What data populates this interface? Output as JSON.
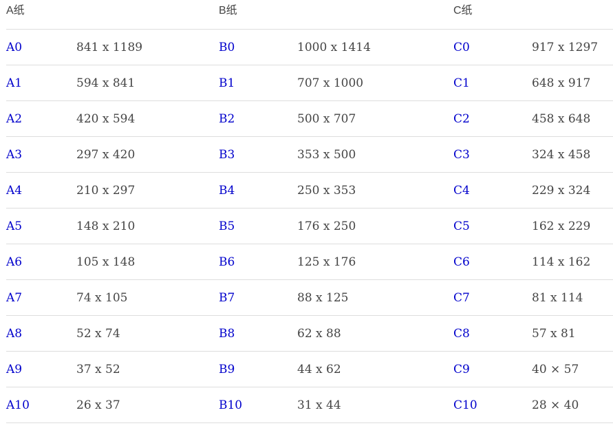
{
  "headers": {
    "a": "A纸",
    "b": "B纸",
    "c": "C纸"
  },
  "rows": [
    {
      "a_code": "A0",
      "a_size": "841 x 1189",
      "b_code": "B0",
      "b_size": "1000 x 1414",
      "c_code": "C0",
      "c_size": "917 x 1297"
    },
    {
      "a_code": "A1",
      "a_size": "594 x 841",
      "b_code": "B1",
      "b_size": "707 x 1000",
      "c_code": "C1",
      "c_size": "648 x 917"
    },
    {
      "a_code": "A2",
      "a_size": "420 x 594",
      "b_code": "B2",
      "b_size": "500 x 707",
      "c_code": "C2",
      "c_size": "458 x 648"
    },
    {
      "a_code": "A3",
      "a_size": "297 x 420",
      "b_code": "B3",
      "b_size": "353 x 500",
      "c_code": "C3",
      "c_size": "324 x 458"
    },
    {
      "a_code": "A4",
      "a_size": "210 x 297",
      "b_code": "B4",
      "b_size": "250 x 353",
      "c_code": "C4",
      "c_size": "229 x 324"
    },
    {
      "a_code": "A5",
      "a_size": "148 x 210",
      "b_code": "B5",
      "b_size": "176 x 250",
      "c_code": "C5",
      "c_size": "162 x 229"
    },
    {
      "a_code": "A6",
      "a_size": "105 x 148",
      "b_code": "B6",
      "b_size": "125 x 176",
      "c_code": "C6",
      "c_size": "114 x 162"
    },
    {
      "a_code": "A7",
      "a_size": "74 x 105",
      "b_code": "B7",
      "b_size": "88 x 125",
      "c_code": "C7",
      "c_size": "81 x 114"
    },
    {
      "a_code": "A8",
      "a_size": "52 x 74",
      "b_code": "B8",
      "b_size": "62 x 88",
      "c_code": "C8",
      "c_size": "57 x 81"
    },
    {
      "a_code": "A9",
      "a_size": "37 x 52",
      "b_code": "B9",
      "b_size": "44 x 62",
      "c_code": "C9",
      "c_size": "40 × 57"
    },
    {
      "a_code": "A10",
      "a_size": "26 x 37",
      "b_code": "B10",
      "b_size": "31 x 44",
      "c_code": "C10",
      "c_size": "28 × 40"
    }
  ],
  "colors": {
    "code_link": "#0000cc",
    "text": "#444444",
    "divider": "#dddddd"
  }
}
